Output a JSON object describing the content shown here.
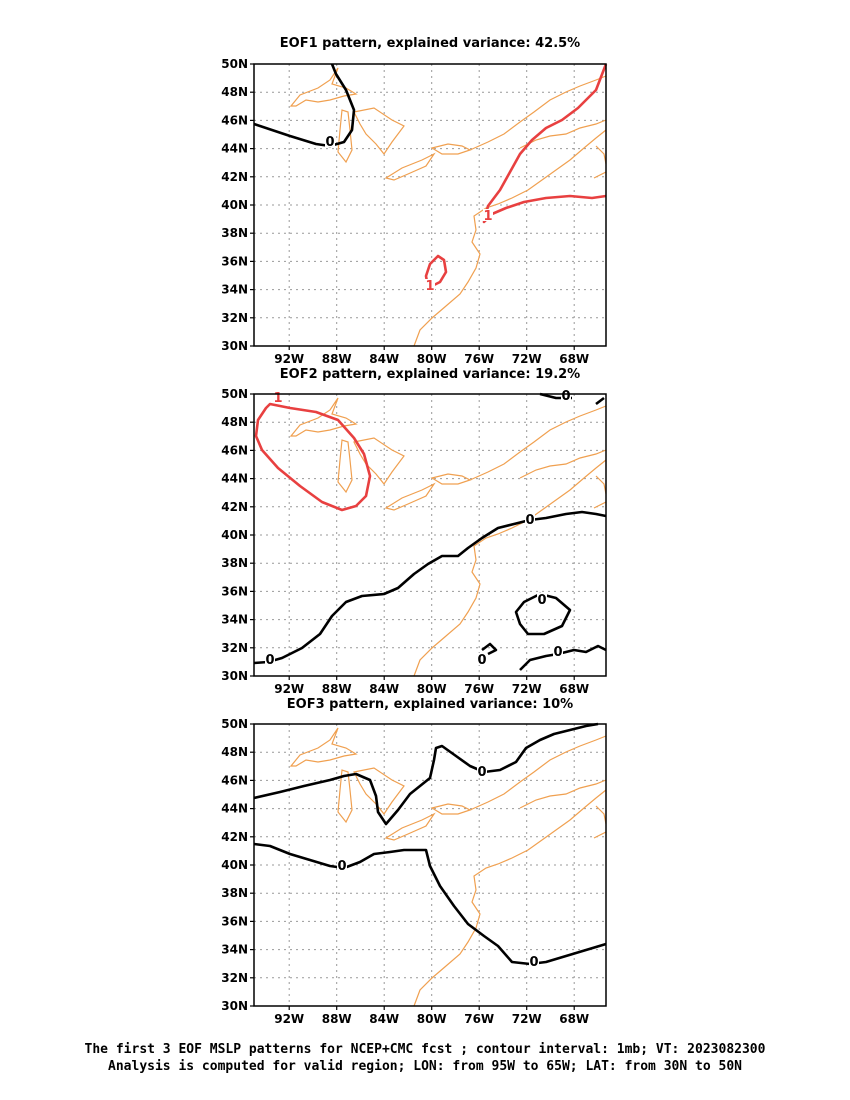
{
  "panels": [
    {
      "title": "EOF1 pattern, explained variance: 42.5%"
    },
    {
      "title": "EOF2 pattern, explained variance: 19.2%"
    },
    {
      "title": "EOF3 pattern, explained variance: 10%"
    }
  ],
  "axes": {
    "lat_labels": [
      "30N",
      "32N",
      "34N",
      "36N",
      "38N",
      "40N",
      "42N",
      "44N",
      "46N",
      "48N",
      "50N"
    ],
    "lon_labels": [
      "92W",
      "88W",
      "84W",
      "80W",
      "76W",
      "72W",
      "68W"
    ]
  },
  "contour_labels": {
    "zero": "0",
    "one": "1"
  },
  "colors": {
    "coast": "#f0a050",
    "positive": "#e84040",
    "zero": "#000000",
    "grid": "#999999"
  },
  "caption": {
    "line1": "The first 3 EOF MSLP patterns for NCEP+CMC fcst ; contour interval: 1mb; VT: 2023082300",
    "line2": "Analysis is computed for valid region; LON: from 95W to 65W; LAT: from 30N to 50N"
  }
}
